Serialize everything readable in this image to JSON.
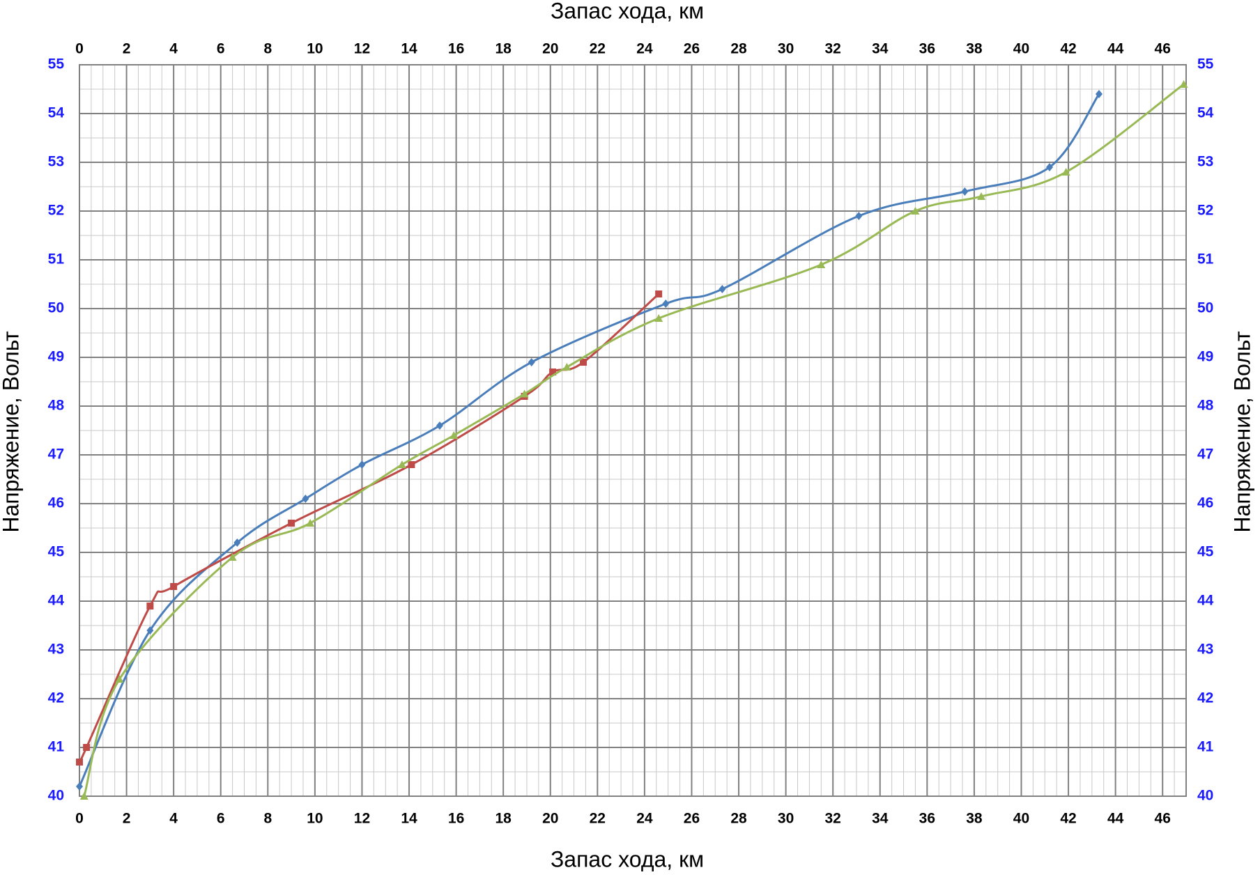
{
  "chart_data": {
    "type": "line",
    "x_label": "Запас хода, км",
    "y_label": "Напряжение, Вольт",
    "xlim": [
      0,
      47
    ],
    "xticks": [
      0,
      2,
      4,
      6,
      8,
      10,
      12,
      14,
      16,
      18,
      20,
      22,
      24,
      26,
      28,
      30,
      32,
      34,
      36,
      38,
      40,
      42,
      44,
      46
    ],
    "ylim": [
      40,
      55
    ],
    "yticks": [
      40,
      41,
      42,
      43,
      44,
      45,
      46,
      47,
      48,
      49,
      50,
      51,
      52,
      53,
      54,
      55
    ],
    "grid": true,
    "smooth": true,
    "series": [
      {
        "color": "#4a7ebb",
        "marker": "diamond",
        "x": [
          0,
          3,
          6.7,
          9.6,
          12,
          15.3,
          19.2,
          24.9,
          27.3,
          33.1,
          37.6,
          41.2,
          43.3
        ],
        "values": [
          40.2,
          43.4,
          45.2,
          46.1,
          46.8,
          47.6,
          48.9,
          50.1,
          50.4,
          51.9,
          52.4,
          52.9,
          54.4
        ]
      },
      {
        "color": "#be4b48",
        "marker": "square",
        "x": [
          0,
          0.3,
          3,
          4,
          9,
          14.1,
          18.9,
          20.1,
          21.4,
          24.6
        ],
        "values": [
          40.7,
          41.0,
          43.9,
          44.3,
          45.6,
          46.8,
          48.2,
          48.7,
          48.9,
          50.3
        ]
      },
      {
        "color": "#98b954",
        "marker": "triangle",
        "x": [
          0.2,
          1.7,
          6.5,
          9.8,
          13.7,
          15.9,
          18.9,
          20.7,
          24.6,
          31.5,
          35.5,
          38.3,
          41.9,
          46.9
        ],
        "values": [
          40.0,
          42.4,
          44.9,
          45.6,
          46.8,
          47.4,
          48.25,
          48.8,
          49.8,
          50.9,
          52.0,
          52.3,
          52.8,
          54.6
        ]
      }
    ]
  }
}
